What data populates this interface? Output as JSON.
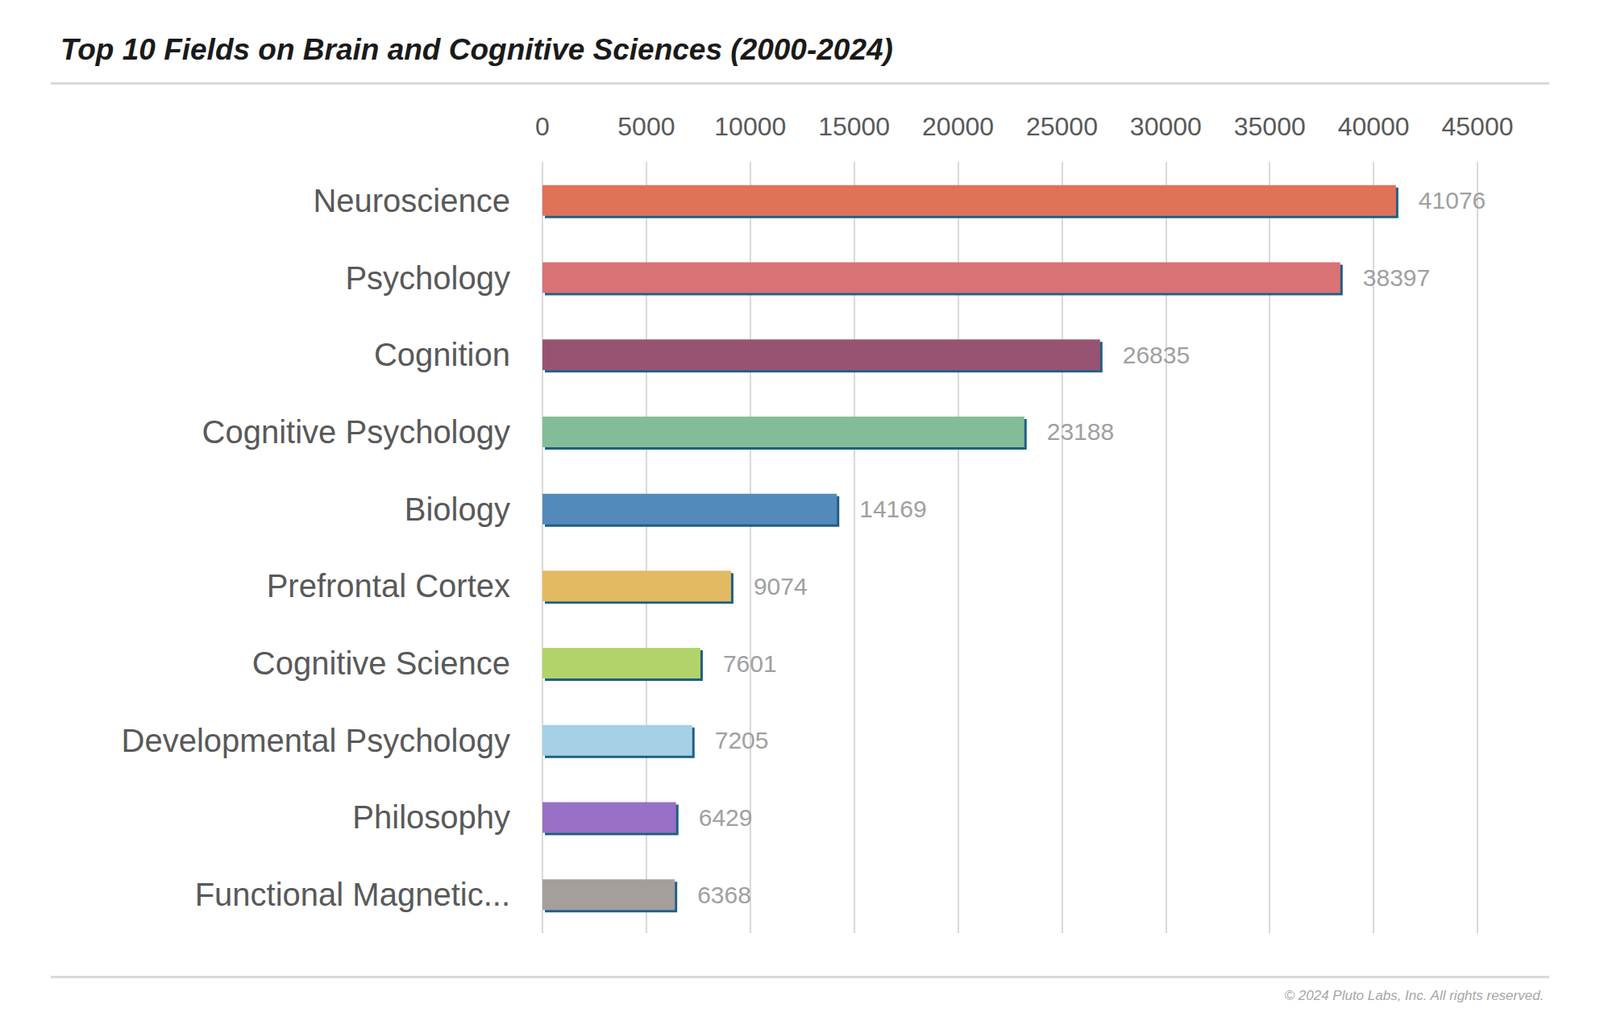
{
  "chart_data": {
    "type": "bar",
    "title": "Top 10 Fields on Brain and Cognitive Sciences (2000-2024)",
    "categories": [
      "Neuroscience",
      "Psychology",
      "Cognition",
      "Cognitive Psychology",
      "Biology",
      "Prefrontal Cortex",
      "Cognitive Science",
      "Developmental Psychology",
      "Philosophy",
      "Functional Magnetic..."
    ],
    "values": [
      41076,
      38397,
      26835,
      23188,
      14169,
      9074,
      7601,
      7205,
      6429,
      6368
    ],
    "colors": [
      "#e07259",
      "#d97274",
      "#985273",
      "#83bd98",
      "#528abb",
      "#e2ba62",
      "#b2d36a",
      "#a5d0e6",
      "#9870c5",
      "#a59f9c"
    ],
    "orientation": "horizontal",
    "xlim": [
      0,
      45000
    ],
    "xticks": [
      0,
      5000,
      10000,
      15000,
      20000,
      25000,
      30000,
      35000,
      40000,
      45000
    ],
    "grid": true,
    "data_labels": true,
    "annotations": [
      "© 2024 Pluto Labs, Inc. All rights reserved."
    ]
  }
}
